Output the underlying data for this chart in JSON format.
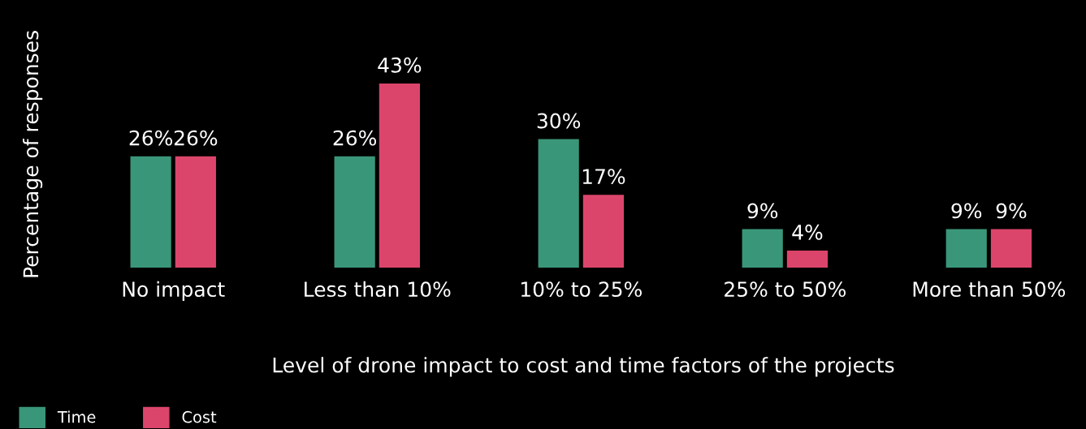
{
  "chart_data": {
    "type": "bar",
    "xlabel": "Level of drone impact to cost and time factors of the projects",
    "ylabel": "Percentage of responses",
    "categories": [
      "No impact",
      "Less than 10%",
      "10% to 25%",
      "25% to 50%",
      "More than 50%"
    ],
    "series": [
      {
        "name": "Time",
        "color": "#3a9679",
        "values": [
          26,
          26,
          30,
          9,
          9
        ],
        "value_labels": [
          "26%",
          "26%",
          "30%",
          "9%",
          "9%"
        ]
      },
      {
        "name": "Cost",
        "color": "#dc456b",
        "values": [
          26,
          43,
          17,
          4,
          9
        ],
        "value_labels": [
          "26%",
          "43%",
          "17%",
          "4%",
          "9%"
        ]
      }
    ],
    "legend": "bottom left",
    "grid": false,
    "tick_labels": "x"
  }
}
